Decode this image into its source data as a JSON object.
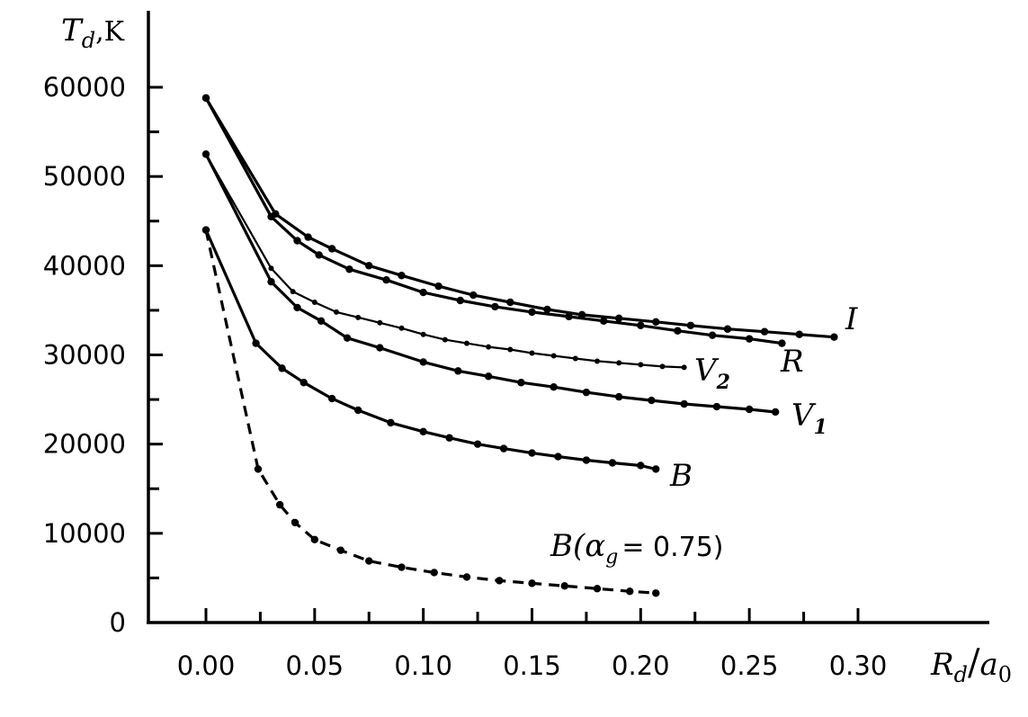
{
  "chart_data": {
    "type": "line",
    "title": "",
    "xlabel": {
      "main": "R",
      "sub": "d",
      "sep": "/",
      "main2": "a",
      "sub2": "0"
    },
    "ylabel": {
      "main": "T",
      "sub": "d",
      "unit": ",K"
    },
    "xlim": [
      -0.025,
      0.36
    ],
    "ylim": [
      0,
      61000
    ],
    "xticks": [
      0.0,
      0.05,
      0.1,
      0.15,
      0.2,
      0.25,
      0.3
    ],
    "xtick_labels": [
      "0.00",
      "0.05",
      "0.10",
      "0.15",
      "0.20",
      "0.25",
      "0.30"
    ],
    "yticks": [
      0,
      10000,
      20000,
      30000,
      40000,
      50000,
      60000
    ],
    "ytick_labels": [
      "0",
      "10000",
      "20000",
      "30000",
      "40000",
      "50000",
      "60000"
    ],
    "grid": false,
    "series": [
      {
        "name": "I",
        "style": "solid",
        "x": [
          0.0,
          0.032,
          0.047,
          0.058,
          0.075,
          0.09,
          0.107,
          0.123,
          0.14,
          0.157,
          0.173,
          0.19,
          0.207,
          0.223,
          0.24,
          0.257,
          0.273,
          0.289
        ],
        "y": [
          58800,
          45800,
          43200,
          41900,
          40000,
          38900,
          37700,
          36700,
          35900,
          35100,
          34500,
          34100,
          33700,
          33300,
          32900,
          32600,
          32300,
          32000
        ]
      },
      {
        "name": "R",
        "style": "solid",
        "x": [
          0.0,
          0.03,
          0.042,
          0.052,
          0.066,
          0.083,
          0.1,
          0.117,
          0.133,
          0.15,
          0.167,
          0.183,
          0.2,
          0.217,
          0.233,
          0.25,
          0.265
        ],
        "y": [
          58800,
          45500,
          42800,
          41200,
          39600,
          38400,
          37000,
          36100,
          35400,
          34800,
          34300,
          33800,
          33300,
          32700,
          32200,
          31800,
          31300
        ]
      },
      {
        "name": "V2",
        "style": "solid-small",
        "x": [
          0.0,
          0.03,
          0.04,
          0.05,
          0.06,
          0.07,
          0.08,
          0.09,
          0.1,
          0.11,
          0.12,
          0.13,
          0.14,
          0.15,
          0.16,
          0.17,
          0.18,
          0.19,
          0.2,
          0.21,
          0.22
        ],
        "y": [
          52500,
          39700,
          37100,
          35900,
          34800,
          34200,
          33600,
          33000,
          32300,
          31700,
          31300,
          30900,
          30600,
          30200,
          29900,
          29600,
          29300,
          29100,
          28900,
          28700,
          28600
        ]
      },
      {
        "name": "V1",
        "style": "solid",
        "x": [
          0.0,
          0.03,
          0.042,
          0.053,
          0.065,
          0.08,
          0.1,
          0.116,
          0.13,
          0.145,
          0.16,
          0.175,
          0.19,
          0.205,
          0.22,
          0.235,
          0.25,
          0.262
        ],
        "y": [
          52500,
          38200,
          35300,
          33800,
          31900,
          30800,
          29200,
          28200,
          27600,
          26900,
          26400,
          25800,
          25300,
          24900,
          24500,
          24200,
          23900,
          23600
        ]
      },
      {
        "name": "B",
        "style": "solid",
        "x": [
          0.0,
          0.023,
          0.035,
          0.045,
          0.058,
          0.07,
          0.085,
          0.1,
          0.112,
          0.125,
          0.137,
          0.15,
          0.162,
          0.175,
          0.187,
          0.2,
          0.207
        ],
        "y": [
          44000,
          31300,
          28500,
          26900,
          25100,
          23800,
          22400,
          21400,
          20700,
          20000,
          19500,
          19000,
          18600,
          18200,
          17900,
          17600,
          17200
        ]
      },
      {
        "name": "B(αg = 0.75)",
        "style": "dashed",
        "x": [
          0.0,
          0.024,
          0.034,
          0.041,
          0.05,
          0.062,
          0.075,
          0.09,
          0.105,
          0.12,
          0.135,
          0.15,
          0.165,
          0.18,
          0.195,
          0.207
        ],
        "y": [
          44000,
          17200,
          13200,
          11200,
          9300,
          8100,
          6900,
          6200,
          5600,
          5100,
          4700,
          4400,
          4100,
          3800,
          3500,
          3300
        ]
      }
    ],
    "annotations": [
      {
        "for": "I",
        "text": "I"
      },
      {
        "for": "R",
        "text": "R"
      },
      {
        "for": "V2",
        "text": "V",
        "sub": "2"
      },
      {
        "for": "V1",
        "text": "V",
        "sub": "1"
      },
      {
        "for": "B",
        "text": "B"
      },
      {
        "for": "B(αg = 0.75)",
        "prefix": "B(α",
        "sub": "g",
        "suffix": "= 0.75)"
      }
    ]
  }
}
